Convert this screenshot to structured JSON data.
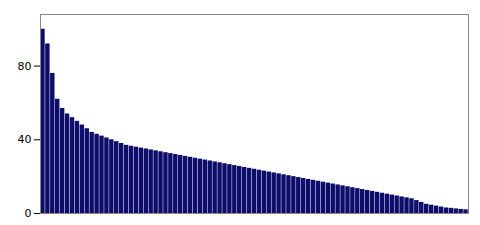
{
  "chart_data": {
    "type": "bar",
    "categories": [
      null,
      null,
      null,
      null,
      null,
      null,
      null,
      null,
      null,
      null,
      null,
      null,
      null,
      null,
      null,
      null,
      null,
      null,
      null,
      null,
      null,
      null,
      null,
      null,
      null,
      null,
      null,
      null,
      null,
      null,
      null,
      null,
      null,
      null,
      null,
      null,
      null,
      null,
      null,
      null,
      null,
      null,
      null,
      null,
      null,
      null,
      null,
      null,
      null,
      null,
      null,
      null,
      null,
      null,
      null,
      null,
      null,
      null,
      null,
      null,
      null,
      null,
      null,
      null,
      null,
      null,
      null,
      null,
      null,
      null,
      null,
      null,
      null,
      null,
      null,
      null,
      null,
      null,
      null,
      null,
      null,
      null,
      null,
      null,
      null,
      null,
      null
    ],
    "values": [
      100,
      92,
      76,
      62,
      57,
      54,
      52,
      50,
      48,
      46,
      44,
      43,
      42,
      41,
      40,
      39,
      38,
      37,
      36.5,
      36,
      35.5,
      35,
      34.5,
      34,
      33.5,
      33,
      32.5,
      32,
      31.5,
      31,
      30.5,
      30,
      29.5,
      29,
      28.5,
      28,
      27.5,
      27,
      26.5,
      26,
      25.5,
      25,
      24.5,
      24,
      23.5,
      23,
      22.5,
      22,
      21.5,
      21,
      20.5,
      20,
      19.5,
      19,
      18.5,
      18,
      17.5,
      17,
      16.5,
      16,
      15.5,
      15,
      14.5,
      14,
      13.5,
      13,
      12.5,
      12,
      11.5,
      11,
      10.5,
      10,
      9.5,
      9,
      8.5,
      8,
      7,
      6,
      5,
      4.5,
      4,
      3.5,
      3,
      2.8,
      2.5,
      2.2,
      2
    ],
    "color": "#0d0d6b",
    "ylim": [
      0,
      108
    ],
    "yticks": [
      0,
      40,
      80
    ],
    "tick_labels": "y"
  }
}
